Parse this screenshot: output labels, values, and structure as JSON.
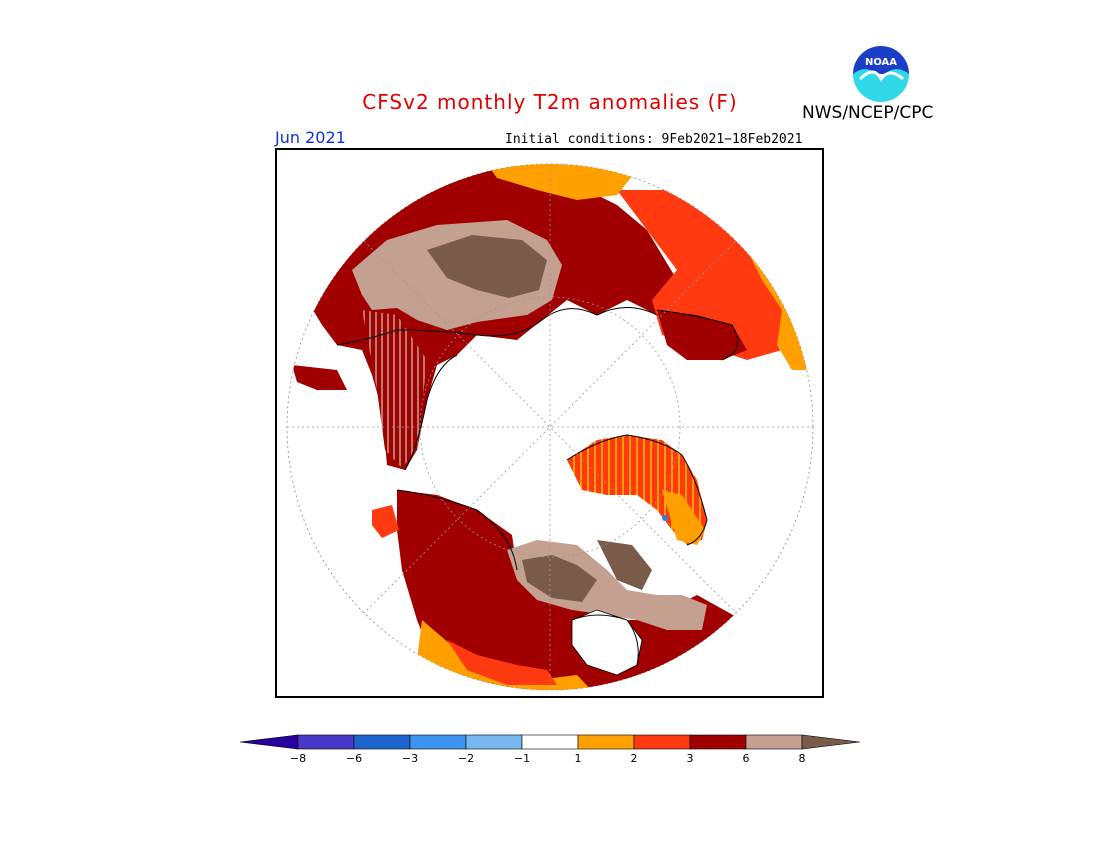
{
  "header": {
    "title": "CFSv2 monthly T2m anomalies (F)",
    "month": "Jun 2021",
    "initial_conditions": "Initial conditions: 9Feb2021−18Feb2021",
    "agency": "NWS/NCEP/CPC",
    "logo_text": "NOAA"
  },
  "map": {
    "projection": "north polar stereographic",
    "colors": {
      "brown": "#7a5a48",
      "tan": "#c4a090",
      "dark_red": "#a00000",
      "red": "#ff3a10",
      "orange": "#ffa000",
      "ocean": "#ffffff",
      "coast": "#000000"
    }
  },
  "colorbar": {
    "colors": [
      "#2800a0",
      "#4a38c8",
      "#1c64d0",
      "#3c94f0",
      "#78b8f0",
      "#ffffff",
      "#ffa000",
      "#ff3a10",
      "#a00000",
      "#c4a090",
      "#7a5a48"
    ],
    "labels": [
      "−8",
      "−6",
      "−3",
      "−2",
      "−1",
      "1",
      "2",
      "3",
      "6",
      "8"
    ]
  }
}
